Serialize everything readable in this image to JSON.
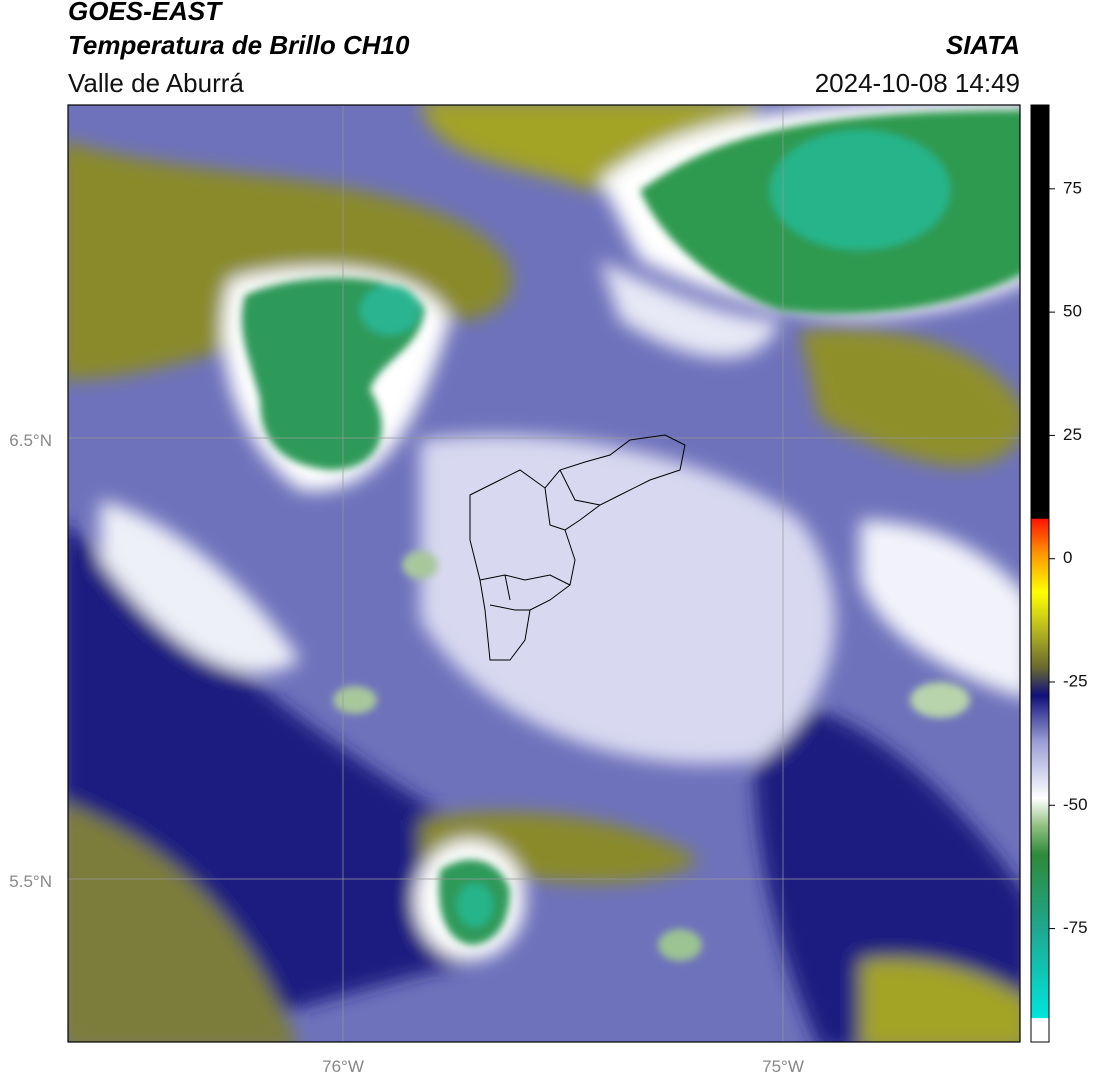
{
  "header": {
    "title": "GOES-EAST",
    "subtitle": "Temperatura de Brillo CH10",
    "region": "Valle de Aburrá",
    "source": "SIATA",
    "datetime": "2024-10-08 14:49"
  },
  "map": {
    "lat_labels": [
      "6.5°N",
      "5.5°N"
    ],
    "lon_labels": [
      "76°W",
      "75°W"
    ]
  },
  "colorbar": {
    "lim": [
      -98,
      92
    ],
    "ticks": [
      75,
      50,
      25,
      0,
      -25,
      -50,
      -75
    ]
  }
}
